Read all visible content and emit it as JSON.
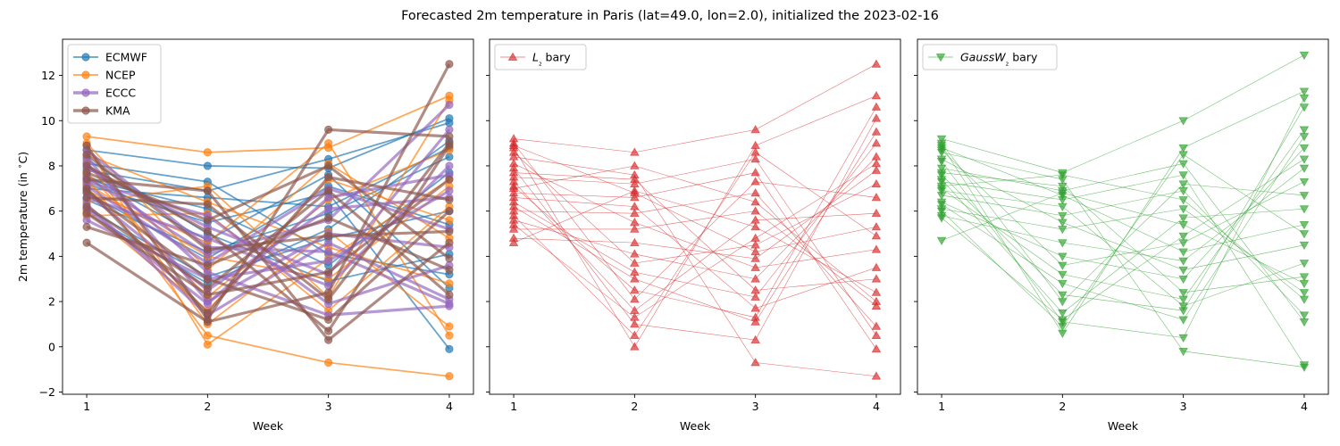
{
  "chart_data": {
    "suptitle": "Forecasted 2m temperature in Paris (lat=49.0, lon=2.0), initialized the 2023-02-16",
    "ylabel": "2m temperature (in $^\\circ$C)",
    "xlabel": "Week",
    "x": [
      1,
      2,
      3,
      4
    ],
    "xticks": [
      "1",
      "2",
      "3",
      "4"
    ],
    "yticks": [
      "−2",
      "0",
      "2",
      "4",
      "6",
      "8",
      "10",
      "12"
    ],
    "ylim": [
      -2.1,
      13.6
    ],
    "xlim": [
      0.8,
      4.2
    ],
    "panels": [
      {
        "type": "line",
        "legend_position": "upper-left",
        "series": [
          {
            "name": "ECMWF",
            "color": "#1f77b4",
            "marker": "circle",
            "values": [
              [
                8.7,
                8.0,
                7.9,
                10.1
              ],
              [
                7.8,
                6.9,
                8.3,
                9.9
              ],
              [
                7.2,
                5.5,
                6.8,
                -0.1
              ],
              [
                6.5,
                4.2,
                5.9,
                8.4
              ],
              [
                8.1,
                7.3,
                4.1,
                3.2
              ],
              [
                5.9,
                2.8,
                5.2,
                9.1
              ],
              [
                7.4,
                6.1,
                3.6,
                7.7
              ],
              [
                6.8,
                3.9,
                7.1,
                5.4
              ],
              [
                8.3,
                5.0,
                2.9,
                4.1
              ],
              [
                7.0,
                6.6,
                6.2,
                8.8
              ],
              [
                6.1,
                3.1,
                4.8,
                6.0
              ],
              [
                7.6,
                4.7,
                7.6,
                2.6
              ]
            ]
          },
          {
            "name": "NCEP",
            "color": "#ff7f0e",
            "marker": "circle",
            "values": [
              [
                9.3,
                8.6,
                8.8,
                11.1
              ],
              [
                8.9,
                0.1,
                3.9,
                7.4
              ],
              [
                7.5,
                0.5,
                -0.7,
                -1.3
              ],
              [
                6.9,
                4.6,
                9.0,
                0.5
              ],
              [
                8.2,
                1.0,
                5.1,
                0.9
              ],
              [
                6.4,
                7.1,
                2.2,
                10.9
              ],
              [
                9.0,
                3.4,
                8.1,
                4.8
              ],
              [
                5.8,
                5.9,
                1.6,
                6.2
              ],
              [
                7.7,
                2.2,
                6.5,
                8.7
              ],
              [
                8.5,
                6.4,
                4.4,
                2.8
              ],
              [
                6.0,
                1.6,
                7.4,
                5.6
              ],
              [
                7.2,
                4.0,
                3.0,
                7.1
              ]
            ]
          },
          {
            "name": "ECCC",
            "color": "#9467bd",
            "marker": "circle",
            "values": [
              [
                8.1,
                3.3,
                1.4,
                1.8
              ],
              [
                7.5,
                4.1,
                5.6,
                10.7
              ],
              [
                6.8,
                2.5,
                6.1,
                6.6
              ],
              [
                7.9,
                5.3,
                3.2,
                9.6
              ],
              [
                6.3,
                1.4,
                4.6,
                2.1
              ],
              [
                7.1,
                3.7,
                7.0,
                5.2
              ],
              [
                6.6,
                4.8,
                2.7,
                8.0
              ],
              [
                8.4,
                2.0,
                5.0,
                4.4
              ],
              [
                5.6,
                3.0,
                3.8,
                6.9
              ],
              [
                7.3,
                5.8,
                1.9,
                3.6
              ],
              [
                6.1,
                1.9,
                6.6,
                7.6
              ],
              [
                8.7,
                4.4,
                4.2,
                1.9
              ]
            ]
          },
          {
            "name": "KMA",
            "color": "#8c564b",
            "marker": "circle",
            "values": [
              [
                8.9,
                1.2,
                9.6,
                9.3
              ],
              [
                4.6,
                1.1,
                2.4,
                12.5
              ],
              [
                7.4,
                6.9,
                0.3,
                4.6
              ],
              [
                6.2,
                2.6,
                6.9,
                2.3
              ],
              [
                8.0,
                5.1,
                0.7,
                8.9
              ],
              [
                5.3,
                3.6,
                5.7,
                3.4
              ],
              [
                7.0,
                1.5,
                7.5,
                6.5
              ],
              [
                6.6,
                6.3,
                2.1,
                9.0
              ],
              [
                8.5,
                4.3,
                4.9,
                5.1
              ],
              [
                5.9,
                2.3,
                3.3,
                7.4
              ],
              [
                7.7,
                5.6,
                8.0,
                3.9
              ],
              [
                6.9,
                3.0,
                1.2,
                6.0
              ]
            ]
          }
        ]
      },
      {
        "type": "line",
        "legend_position": "upper-left",
        "series": [
          {
            "name": "L₂ bary",
            "color": "#d62728",
            "marker": "triangle-up",
            "values": [
              [
                9.2,
                8.6,
                9.6,
                12.5
              ],
              [
                8.8,
                0.0,
                8.9,
                11.1
              ],
              [
                8.4,
                7.6,
                -0.7,
                -1.3
              ],
              [
                7.9,
                1.0,
                0.3,
                10.1
              ],
              [
                7.5,
                7.2,
                8.3,
                0.5
              ],
              [
                7.1,
                2.5,
                1.3,
                10.6
              ],
              [
                6.8,
                6.6,
                7.7,
                -0.1
              ],
              [
                6.4,
                3.3,
                2.2,
                9.0
              ],
              [
                6.0,
                5.9,
                6.8,
                0.9
              ],
              [
                5.6,
                4.1,
                3.0,
                8.4
              ],
              [
                5.2,
                5.2,
                6.0,
                1.8
              ],
              [
                4.8,
                4.6,
                3.9,
                7.8
              ],
              [
                4.6,
                6.9,
                5.3,
                2.4
              ],
              [
                8.6,
                3.7,
                4.5,
                7.2
              ],
              [
                7.7,
                7.4,
                2.5,
                3.0
              ],
              [
                9.0,
                2.1,
                7.3,
                6.6
              ],
              [
                6.6,
                6.2,
                1.7,
                3.5
              ],
              [
                7.3,
                1.6,
                5.6,
                5.9
              ],
              [
                8.1,
                5.5,
                3.5,
                4.3
              ],
              [
                5.8,
                0.5,
                8.6,
                4.9
              ],
              [
                8.9,
                6.8,
                4.2,
                5.3
              ],
              [
                6.2,
                3.0,
                1.1,
                9.5
              ],
              [
                7.0,
                8.0,
                6.4,
                2.0
              ],
              [
                5.4,
                1.3,
                4.8,
                8.1
              ]
            ]
          }
        ]
      },
      {
        "type": "line",
        "legend_position": "upper-left",
        "series": [
          {
            "name": "GaussW₂ bary",
            "color": "#2ca02c",
            "marker": "triangle-down",
            "values": [
              [
                9.2,
                7.7,
                10.0,
                12.9
              ],
              [
                8.9,
                0.6,
                8.8,
                11.3
              ],
              [
                8.6,
                7.4,
                -0.2,
                -0.9
              ],
              [
                8.2,
                1.1,
                0.4,
                11.0
              ],
              [
                7.9,
                6.9,
                8.1,
                1.1
              ],
              [
                7.6,
                2.3,
                1.6,
                10.6
              ],
              [
                7.3,
                6.5,
                7.6,
                -0.8
              ],
              [
                7.0,
                3.2,
                2.1,
                9.6
              ],
              [
                6.7,
                5.8,
                6.9,
                1.4
              ],
              [
                6.4,
                4.0,
                3.0,
                8.8
              ],
              [
                6.1,
                5.2,
                6.1,
                2.4
              ],
              [
                5.8,
                4.6,
                3.8,
                7.9
              ],
              [
                4.7,
                6.8,
                5.4,
                2.8
              ],
              [
                8.7,
                3.6,
                4.6,
                7.3
              ],
              [
                7.7,
                7.1,
                2.4,
                3.1
              ],
              [
                9.0,
                2.0,
                7.2,
                6.7
              ],
              [
                6.9,
                6.2,
                1.8,
                3.7
              ],
              [
                7.4,
                1.5,
                5.7,
                6.1
              ],
              [
                8.3,
                5.5,
                3.4,
                4.5
              ],
              [
                6.0,
                0.9,
                8.5,
                5.0
              ],
              [
                8.8,
                6.7,
                4.2,
                5.4
              ],
              [
                6.3,
                2.8,
                1.2,
                9.3
              ],
              [
                7.1,
                7.6,
                6.5,
                2.1
              ],
              [
                5.7,
                1.2,
                4.9,
                8.3
              ]
            ]
          }
        ]
      }
    ]
  }
}
